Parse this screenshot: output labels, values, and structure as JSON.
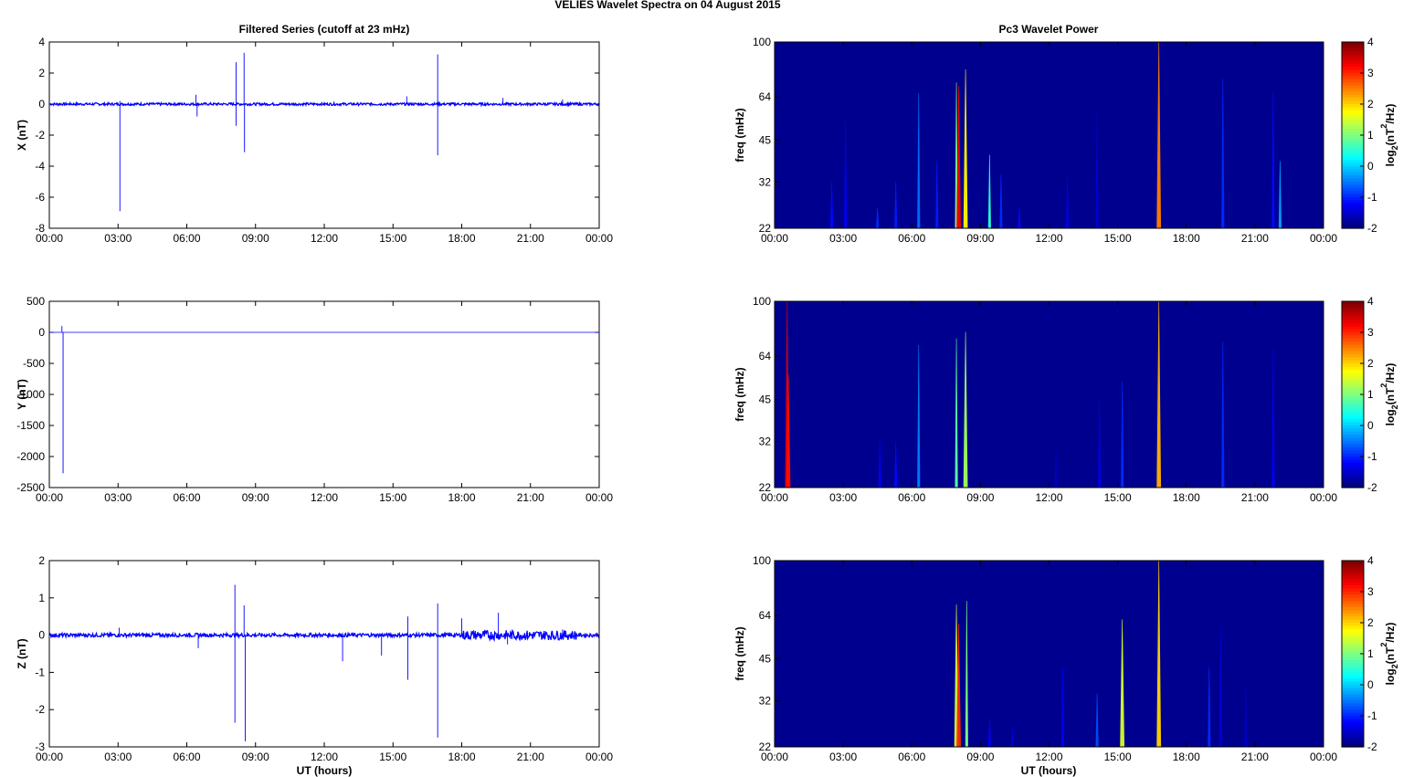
{
  "figure": {
    "title": "VELIES Wavelet Spectra on 04 August    2015",
    "left_title": "Filtered Series (cutoff at 23 mHz)",
    "right_title": "Pc3 Wavelet Power",
    "xlabel": "UT (hours)"
  },
  "time_ticks": [
    "00:00",
    "03:00",
    "06:00",
    "09:00",
    "12:00",
    "15:00",
    "18:00",
    "21:00",
    "00:00"
  ],
  "colors": {
    "series_line": "#0000ff",
    "axis": "#000000",
    "spectrogram_background": "#00008f"
  },
  "colorbar": {
    "label_main": "log",
    "label_sub": "2",
    "label_rest_a": "(nT",
    "label_sup": "2",
    "label_rest_b": "/Hz)",
    "ticks": [
      "4",
      "3",
      "2",
      "1",
      "0",
      "-1",
      "-2"
    ],
    "range": [
      -2,
      4
    ],
    "colormap": "jet"
  },
  "chart_data": [
    {
      "type": "line",
      "panel": "X",
      "ylabel": "X (nT)",
      "yticks": [
        "4",
        "2",
        "0",
        "-2",
        "-4",
        "-6",
        "-8"
      ],
      "ylim": [
        -8,
        4
      ],
      "xlim_hours": [
        0,
        24
      ],
      "noise_amplitude_nT": 0.08,
      "spikes": [
        {
          "t": 3.08,
          "y": -6.9
        },
        {
          "t": 3.08,
          "y": 0.2
        },
        {
          "t": 6.4,
          "y": 0.6
        },
        {
          "t": 6.45,
          "y": -0.8
        },
        {
          "t": 8.15,
          "y": 2.7
        },
        {
          "t": 8.15,
          "y": -1.4
        },
        {
          "t": 8.5,
          "y": 3.3
        },
        {
          "t": 8.52,
          "y": -3.1
        },
        {
          "t": 15.6,
          "y": 0.5
        },
        {
          "t": 16.95,
          "y": 3.2
        },
        {
          "t": 16.95,
          "y": -3.3
        },
        {
          "t": 19.8,
          "y": 0.4
        },
        {
          "t": 22.4,
          "y": 0.3
        }
      ]
    },
    {
      "type": "line",
      "panel": "Y",
      "ylabel": "Y (nT)",
      "yticks": [
        "500",
        "0",
        "-500",
        "-1000",
        "-1500",
        "-2000",
        "-2500"
      ],
      "ylim": [
        -2500,
        500
      ],
      "xlim_hours": [
        0,
        24
      ],
      "noise_amplitude_nT": 0.0,
      "spikes": [
        {
          "t": 0.55,
          "y": 100
        },
        {
          "t": 0.6,
          "y": -2270
        }
      ]
    },
    {
      "type": "line",
      "panel": "Z",
      "ylabel": "Z (nT)",
      "yticks": [
        "2",
        "1",
        "0",
        "-1",
        "-2",
        "-3"
      ],
      "ylim": [
        -3,
        2
      ],
      "xlim_hours": [
        0,
        24
      ],
      "noise_amplitude_nT": 0.05,
      "spikes": [
        {
          "t": 3.05,
          "y": 0.2
        },
        {
          "t": 6.5,
          "y": -0.35
        },
        {
          "t": 8.1,
          "y": 1.35
        },
        {
          "t": 8.1,
          "y": -2.35
        },
        {
          "t": 8.5,
          "y": 0.8
        },
        {
          "t": 8.55,
          "y": -2.85
        },
        {
          "t": 12.8,
          "y": -0.7
        },
        {
          "t": 14.5,
          "y": -0.55
        },
        {
          "t": 15.65,
          "y": 0.5
        },
        {
          "t": 15.65,
          "y": -1.2
        },
        {
          "t": 16.95,
          "y": 0.85
        },
        {
          "t": 16.95,
          "y": -2.75
        },
        {
          "t": 18.0,
          "y": 0.45
        },
        {
          "t": 19.6,
          "y": 0.6
        },
        {
          "t": 20.0,
          "y": -0.25
        },
        {
          "t": 22.4,
          "y": 0.15
        }
      ],
      "burst_region_hours": [
        18,
        23
      ]
    },
    {
      "type": "heatmap",
      "panel": "X wavelet",
      "ylabel": "freq (mHz)",
      "yticks": [
        "100",
        "64",
        "45",
        "32",
        "22"
      ],
      "ylim_mHz": [
        22,
        100
      ],
      "y_scale": "log",
      "xlim_hours": [
        0,
        24
      ],
      "streaks": [
        {
          "t": 2.5,
          "fmin": 22,
          "fmax": 32,
          "value": -1.2
        },
        {
          "t": 3.1,
          "fmin": 22,
          "fmax": 52,
          "value": -1.3
        },
        {
          "t": 4.5,
          "fmin": 22,
          "fmax": 26,
          "value": -1.0
        },
        {
          "t": 5.3,
          "fmin": 22,
          "fmax": 32,
          "value": -1.1
        },
        {
          "t": 6.3,
          "fmin": 22,
          "fmax": 66,
          "value": -0.6
        },
        {
          "t": 7.1,
          "fmin": 22,
          "fmax": 38,
          "value": -1.1
        },
        {
          "t": 7.95,
          "fmin": 22,
          "fmax": 72,
          "value": 1.0
        },
        {
          "t": 8.05,
          "fmin": 22,
          "fmax": 70,
          "value": 3.3
        },
        {
          "t": 8.35,
          "fmin": 22,
          "fmax": 80,
          "value": 1.8
        },
        {
          "t": 9.4,
          "fmin": 22,
          "fmax": 40,
          "value": 0.5
        },
        {
          "t": 9.9,
          "fmin": 22,
          "fmax": 34,
          "value": -1.0
        },
        {
          "t": 10.7,
          "fmin": 22,
          "fmax": 26,
          "value": -1.2
        },
        {
          "t": 12.8,
          "fmin": 22,
          "fmax": 34,
          "value": -1.4
        },
        {
          "t": 14.1,
          "fmin": 22,
          "fmax": 56,
          "value": -1.5
        },
        {
          "t": 16.8,
          "fmin": 22,
          "fmax": 100,
          "value": 2.5
        },
        {
          "t": 19.6,
          "fmin": 22,
          "fmax": 74,
          "value": -1.0
        },
        {
          "t": 21.8,
          "fmin": 22,
          "fmax": 66,
          "value": -1.2
        },
        {
          "t": 22.1,
          "fmin": 22,
          "fmax": 38,
          "value": -0.3
        }
      ]
    },
    {
      "type": "heatmap",
      "panel": "Y wavelet",
      "ylabel": "freq (mHz)",
      "yticks": [
        "100",
        "64",
        "45",
        "32",
        "22"
      ],
      "ylim_mHz": [
        22,
        100
      ],
      "y_scale": "log",
      "xlim_hours": [
        0,
        24
      ],
      "streaks": [
        {
          "t": 0.55,
          "fmin": 22,
          "fmax": 100,
          "value": 3.5
        },
        {
          "t": 0.6,
          "fmin": 22,
          "fmax": 55,
          "value": 3.2
        },
        {
          "t": 4.6,
          "fmin": 22,
          "fmax": 32,
          "value": -1.3
        },
        {
          "t": 5.3,
          "fmin": 22,
          "fmax": 32,
          "value": -1.2
        },
        {
          "t": 6.3,
          "fmin": 22,
          "fmax": 70,
          "value": -0.5
        },
        {
          "t": 7.95,
          "fmin": 22,
          "fmax": 74,
          "value": 0.8
        },
        {
          "t": 8.35,
          "fmin": 22,
          "fmax": 78,
          "value": 1.2
        },
        {
          "t": 12.3,
          "fmin": 22,
          "fmax": 30,
          "value": -1.6
        },
        {
          "t": 14.2,
          "fmin": 22,
          "fmax": 45,
          "value": -1.4
        },
        {
          "t": 15.2,
          "fmin": 22,
          "fmax": 52,
          "value": -1.0
        },
        {
          "t": 16.8,
          "fmin": 22,
          "fmax": 100,
          "value": 2.2
        },
        {
          "t": 19.6,
          "fmin": 22,
          "fmax": 72,
          "value": -1.0
        },
        {
          "t": 21.8,
          "fmin": 22,
          "fmax": 68,
          "value": -1.3
        }
      ]
    },
    {
      "type": "heatmap",
      "panel": "Z wavelet",
      "ylabel": "freq (mHz)",
      "yticks": [
        "100",
        "64",
        "45",
        "32",
        "22"
      ],
      "ylim_mHz": [
        22,
        100
      ],
      "y_scale": "log",
      "xlim_hours": [
        0,
        24
      ],
      "streaks": [
        {
          "t": 7.95,
          "fmin": 22,
          "fmax": 70,
          "value": 1.5
        },
        {
          "t": 8.05,
          "fmin": 22,
          "fmax": 60,
          "value": 3.0
        },
        {
          "t": 8.4,
          "fmin": 22,
          "fmax": 72,
          "value": 1.0
        },
        {
          "t": 9.4,
          "fmin": 22,
          "fmax": 28,
          "value": -1.3
        },
        {
          "t": 10.4,
          "fmin": 22,
          "fmax": 26,
          "value": -1.5
        },
        {
          "t": 12.6,
          "fmin": 22,
          "fmax": 42,
          "value": -1.3
        },
        {
          "t": 14.1,
          "fmin": 22,
          "fmax": 34,
          "value": -0.8
        },
        {
          "t": 15.2,
          "fmin": 22,
          "fmax": 62,
          "value": 1.5
        },
        {
          "t": 16.8,
          "fmin": 22,
          "fmax": 100,
          "value": 2.0
        },
        {
          "t": 19.0,
          "fmin": 22,
          "fmax": 42,
          "value": -1.0
        },
        {
          "t": 19.5,
          "fmin": 22,
          "fmax": 58,
          "value": -1.5
        },
        {
          "t": 20.6,
          "fmin": 22,
          "fmax": 36,
          "value": -1.6
        }
      ]
    }
  ]
}
